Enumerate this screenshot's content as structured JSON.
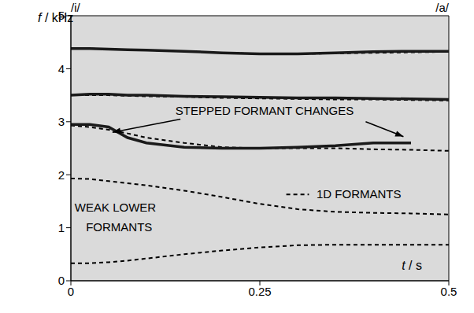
{
  "chart_data": {
    "type": "line",
    "x_label": "t / s",
    "y_label": "f / kHz",
    "annotations": [
      "/i/",
      "/a/",
      "STEPPED FORMANT CHANGES",
      "1D FORMANTS",
      "WEAK LOWER FORMANTS"
    ],
    "x": [
      0,
      0.025,
      0.05,
      0.075,
      0.1,
      0.15,
      0.2,
      0.25,
      0.3,
      0.35,
      0.4,
      0.45,
      0.5
    ],
    "series": [
      {
        "color": "#000000",
        "line_style": "dashed",
        "values": [
          0.33,
          0.33,
          0.35,
          0.38,
          0.42,
          0.5,
          0.57,
          0.63,
          0.67,
          0.68,
          0.68,
          0.68,
          0.68
        ]
      },
      {
        "color": "#000000",
        "line_style": "dashed",
        "values": [
          1.93,
          1.92,
          1.88,
          1.84,
          1.8,
          1.7,
          1.58,
          1.45,
          1.35,
          1.3,
          1.28,
          1.27,
          1.25
        ]
      },
      {
        "color": "#000000",
        "line_style": "dashed",
        "values": [
          2.93,
          2.9,
          2.85,
          2.78,
          2.7,
          2.6,
          2.52,
          2.5,
          2.5,
          2.5,
          2.48,
          2.47,
          2.45
        ]
      },
      {
        "color": "#000000",
        "line_style": "dashed",
        "values": [
          3.5,
          3.5,
          3.5,
          3.49,
          3.48,
          3.47,
          3.45,
          3.44,
          3.43,
          3.42,
          3.42,
          3.41,
          3.4
        ]
      },
      {
        "color": "#000000",
        "line_style": "dashed",
        "values": [
          4.38,
          4.38,
          4.37,
          4.36,
          4.35,
          4.33,
          4.3,
          4.28,
          4.28,
          4.29,
          4.3,
          4.31,
          4.32
        ]
      },
      {
        "color": "#1a1a1a",
        "line_style": "solid",
        "values": [
          2.95,
          2.95,
          2.9,
          2.7,
          2.6,
          2.52,
          2.5,
          2.5,
          2.52,
          2.55,
          2.6,
          2.6,
          null
        ]
      },
      {
        "color": "#1a1a1a",
        "line_style": "solid",
        "values": [
          3.5,
          3.52,
          3.52,
          3.5,
          3.5,
          3.48,
          3.47,
          3.46,
          3.45,
          3.45,
          3.44,
          3.43,
          3.42
        ]
      },
      {
        "color": "#1a1a1a",
        "line_style": "solid",
        "values": [
          4.38,
          4.38,
          4.37,
          4.36,
          4.35,
          4.33,
          4.3,
          4.28,
          4.28,
          4.3,
          4.32,
          4.33,
          4.33
        ]
      }
    ],
    "xlim": [
      0,
      0.5
    ],
    "ylim": [
      0,
      5
    ],
    "xticks": [
      0,
      0.25,
      0.5
    ],
    "yticks": [
      0,
      1,
      2,
      3,
      4,
      5
    ]
  }
}
